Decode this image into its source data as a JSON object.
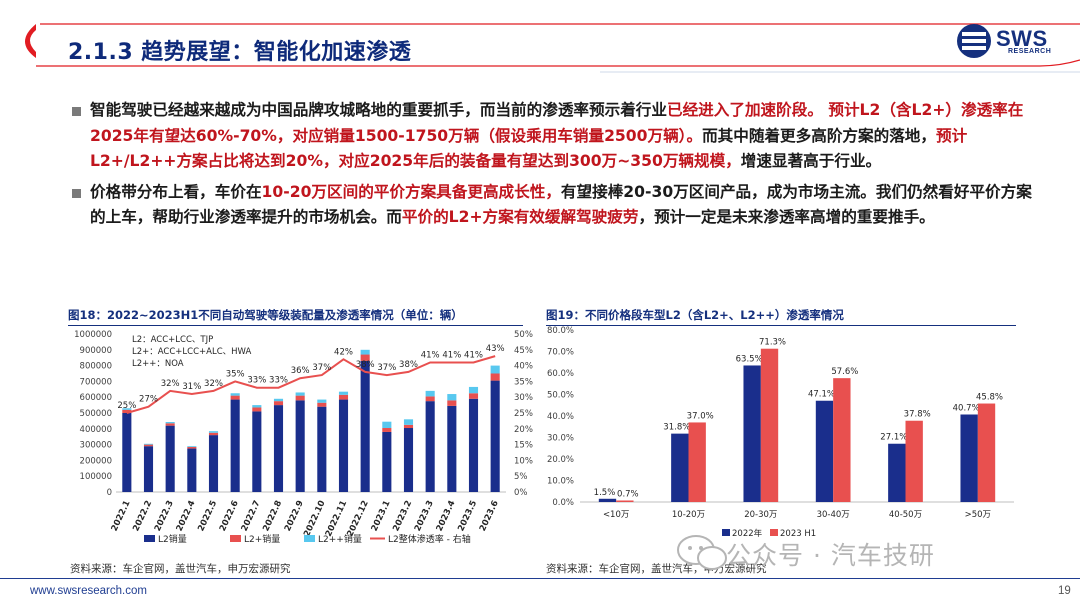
{
  "header": {
    "title": "2.1.3 趋势展望：智能化加速渗透",
    "logo_text": "SWS",
    "logo_sub": "RESEARCH"
  },
  "bullets": [
    {
      "segments": [
        {
          "text": "智能驾驶已经越来越成为中国品牌攻城略地的重要抓手，而当前的渗透率预示着行业",
          "red": false
        },
        {
          "text": "已经进入了加速阶段。",
          "red": true
        },
        {
          "text": " 预计L2（含L2+）渗透率在2025年有望达60%-70%，对应销量1500-1750万辆（假设乘用车销量2500万辆）。",
          "red": true
        },
        {
          "text": "而其中随着更多高阶方案的落地，",
          "red": false
        },
        {
          "text": "预计L2+/L2++方案占比将达到20%，对应2025年后的装备量有望达到300万~350万辆规模，",
          "red": true
        },
        {
          "text": "增速显著高于行业。",
          "red": false
        }
      ]
    },
    {
      "segments": [
        {
          "text": "价格带分布上看，车价在",
          "red": false
        },
        {
          "text": "10-20万区间的平价方案具备更高成长性，",
          "red": true
        },
        {
          "text": "有望接棒20-30万区间产品，成为市场主流。我们仍然看好平价方案的上车，帮助行业渗透率提升的市场机会。而",
          "red": false
        },
        {
          "text": "平价的L2+方案有效缓解驾驶疲劳",
          "red": true
        },
        {
          "text": "，预计一定是未来渗透率高增的重要推手。",
          "red": false
        }
      ]
    }
  ],
  "figure18": {
    "title": "图18：2022~2023H1不同自动驾驶等级装配量及渗透率情况（单位：辆）",
    "source": "资料来源：车企官网，盖世汽车，申万宏源研究"
  },
  "figure19": {
    "title": "图19：不同价格段车型L2（含L2+、L2++）渗透率情况",
    "source": "资料来源：车企官网，盖世汽车，申万宏源研究"
  },
  "footer": {
    "url": "www.swsresearch.com",
    "page": "19"
  },
  "watermark": {
    "text": "公众号 · 汽车技研"
  },
  "colors": {
    "title_blue": "#15307e",
    "red_text": "#c0151d",
    "bar_dark_blue": "#1a2e8c",
    "bar_red": "#e8504f",
    "bar_cyan": "#58c8ef",
    "line_red": "#e8504f"
  },
  "chart_data": [
    {
      "type": "bar",
      "title": "图18：2022~2023H1不同自动驾驶等级装配量及渗透率情况（单位：辆）",
      "categories": [
        "2022.1",
        "2022.2",
        "2022.3",
        "2022.4",
        "2022.5",
        "2022.6",
        "2022.7",
        "2022.8",
        "2022.9",
        "2022.10",
        "2022.11",
        "2022.12",
        "2023.1",
        "2023.2",
        "2023.3",
        "2023.4",
        "2023.5",
        "2023.6"
      ],
      "stacked": true,
      "series": [
        {
          "name": "L2销量",
          "values": [
            500000,
            290000,
            420000,
            275000,
            360000,
            585000,
            510000,
            550000,
            580000,
            540000,
            585000,
            830000,
            380000,
            405000,
            575000,
            545000,
            590000,
            705000
          ]
        },
        {
          "name": "L2+销量",
          "values": [
            20000,
            10000,
            15000,
            10000,
            15000,
            25000,
            25000,
            25000,
            30000,
            25000,
            30000,
            40000,
            25000,
            20000,
            30000,
            35000,
            35000,
            45000
          ]
        },
        {
          "name": "L2++销量",
          "values": [
            10000,
            5000,
            8000,
            5000,
            10000,
            15000,
            15000,
            15000,
            20000,
            20000,
            20000,
            30000,
            40000,
            35000,
            35000,
            40000,
            40000,
            50000
          ]
        }
      ],
      "line": {
        "name": "L2整体渗透率 - 右轴",
        "axis": "right",
        "values": [
          25,
          27,
          32,
          31,
          32,
          35,
          33,
          33,
          36,
          37,
          42,
          38,
          37,
          38,
          41,
          41,
          41,
          43
        ],
        "labels": [
          "25%",
          "27%",
          "32%",
          "31%",
          "32%",
          "35%",
          "33%",
          "33%",
          "36%",
          "37%",
          "42%",
          "38%",
          "37%",
          "38%",
          "41%",
          "41%",
          "41%",
          "43%"
        ]
      },
      "legend_items": [
        "L2销量",
        "L2+销量",
        "L2++销量",
        "L2整体渗透率 - 右轴"
      ],
      "legend_position": "bottom",
      "annotations": [
        "L2：ACC+LCC、TJP",
        "L2+：ACC+LCC+ALC、HWA",
        "L2++：NOA"
      ],
      "ylim": [
        0,
        1000000
      ],
      "yticks": [
        "0",
        "100000",
        "200000",
        "300000",
        "400000",
        "500000",
        "600000",
        "700000",
        "800000",
        "900000",
        "1000000"
      ],
      "y2lim": [
        0,
        50
      ],
      "y2ticks": [
        "0%",
        "5%",
        "10%",
        "15%",
        "20%",
        "25%",
        "30%",
        "35%",
        "40%",
        "45%",
        "50%"
      ]
    },
    {
      "type": "bar",
      "title": "图19：不同价格段车型L2（含L2+、L2++）渗透率情况",
      "categories": [
        "<10万",
        "10-20万",
        "20-30万",
        "30-40万",
        "40-50万",
        ">50万"
      ],
      "series": [
        {
          "name": "2022年",
          "values": [
            1.5,
            31.8,
            63.5,
            47.1,
            27.1,
            40.7
          ],
          "labels": [
            "1.5%",
            "31.8%",
            "63.5%",
            "47.1%",
            "27.1%",
            "40.7%"
          ]
        },
        {
          "name": "2023 H1",
          "values": [
            0.7,
            37.0,
            71.3,
            57.6,
            37.8,
            45.8
          ],
          "labels": [
            "0.7%",
            "37.0%",
            "71.3%",
            "57.6%",
            "37.8%",
            "45.8%"
          ]
        }
      ],
      "legend_position": "bottom",
      "ylim": [
        0,
        80
      ],
      "yticks": [
        "0.0%",
        "10.0%",
        "20.0%",
        "30.0%",
        "40.0%",
        "50.0%",
        "60.0%",
        "70.0%",
        "80.0%"
      ]
    }
  ]
}
